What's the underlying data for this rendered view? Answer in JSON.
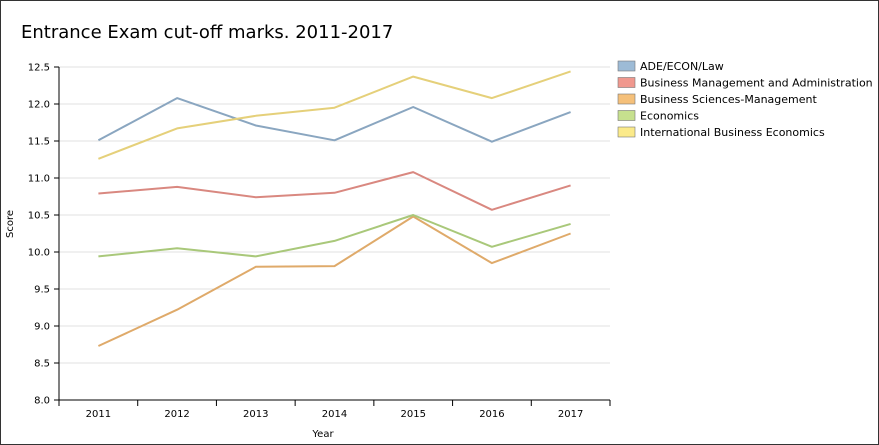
{
  "chart_data": {
    "type": "line",
    "title": "Entrance Exam cut-off marks. 2011-2017",
    "xlabel": "Year",
    "ylabel": "Score",
    "categories": [
      "2011",
      "2012",
      "2013",
      "2014",
      "2015",
      "2016",
      "2017"
    ],
    "ylim": [
      8.0,
      12.5
    ],
    "yticks": [
      "8.0",
      "8.5",
      "9.0",
      "9.5",
      "10.0",
      "10.5",
      "11.0",
      "11.5",
      "12.0",
      "12.5"
    ],
    "grid": true,
    "legend_position": "top-right",
    "series": [
      {
        "name": "ADE/ECON/Law",
        "color": "#8aa6c0",
        "swatch": "#9dbbd6",
        "values": [
          11.51,
          12.08,
          11.71,
          11.51,
          11.96,
          11.49,
          11.89
        ]
      },
      {
        "name": "Business Management and Administration",
        "color": "#d98880",
        "swatch": "#f0988e",
        "values": [
          10.79,
          10.88,
          10.74,
          10.8,
          11.08,
          10.57,
          10.9
        ]
      },
      {
        "name": "Business Sciences-Management",
        "color": "#dfaa6a",
        "swatch": "#f5c07a",
        "values": [
          8.73,
          9.22,
          9.8,
          9.81,
          10.48,
          9.85,
          10.25
        ]
      },
      {
        "name": "Economics",
        "color": "#a9c87a",
        "swatch": "#c6e08e",
        "values": [
          9.94,
          10.05,
          9.94,
          10.15,
          10.5,
          10.07,
          10.38
        ]
      },
      {
        "name": "International Business Economics",
        "color": "#e5d07a",
        "swatch": "#fbea8a",
        "values": [
          11.26,
          11.67,
          11.84,
          11.95,
          12.37,
          12.08,
          12.44
        ]
      }
    ]
  }
}
